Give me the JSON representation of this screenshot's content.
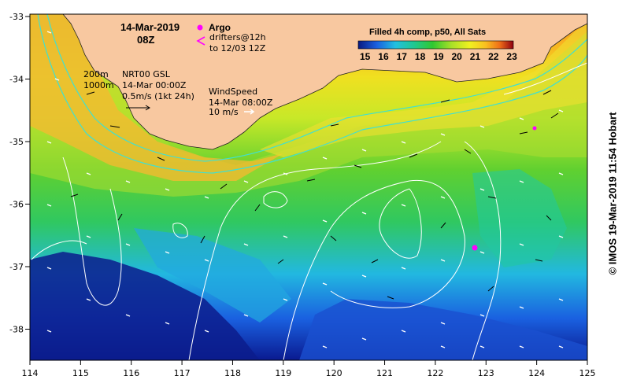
{
  "map": {
    "date": "14-Mar-2019",
    "time": "08Z",
    "legend": {
      "argo_label": "Argo",
      "drifters_label": "drifters@12h",
      "drifters_until": "to 12/03 12Z"
    },
    "isobaths": [
      "200m",
      "1000m"
    ],
    "current_info": {
      "product": "NRT00 GSL",
      "datetime": "14-Mar 00:00Z",
      "scale": "0.5m/s (1kt 24h)"
    },
    "wind_info": {
      "label": "WindSpeed",
      "datetime": "14-Mar 08:00Z",
      "scale": "10 m/s"
    },
    "colorbar": {
      "title": "Filled 4h comp, p50, All Sats",
      "ticks": [
        "15",
        "16",
        "17",
        "18",
        "19",
        "20",
        "21",
        "22",
        "23"
      ],
      "colors": [
        "#0a1a80",
        "#1230c8",
        "#1a7ae8",
        "#22c0e0",
        "#20c890",
        "#30c830",
        "#a8e028",
        "#f0f020",
        "#f8c020",
        "#f07018",
        "#d02010",
        "#900010"
      ]
    },
    "x_axis": {
      "ticks": [
        "114",
        "115",
        "116",
        "117",
        "118",
        "119",
        "120",
        "121",
        "122",
        "123",
        "124",
        "125"
      ]
    },
    "y_axis": {
      "ticks": [
        "-33",
        "-34",
        "-35",
        "-36",
        "-37",
        "-38"
      ]
    },
    "credit": "© IMOS 19-Mar-2019 11:54 Hobart",
    "land_color": "#f8c8a0",
    "argo_color": "#ff00ff"
  }
}
